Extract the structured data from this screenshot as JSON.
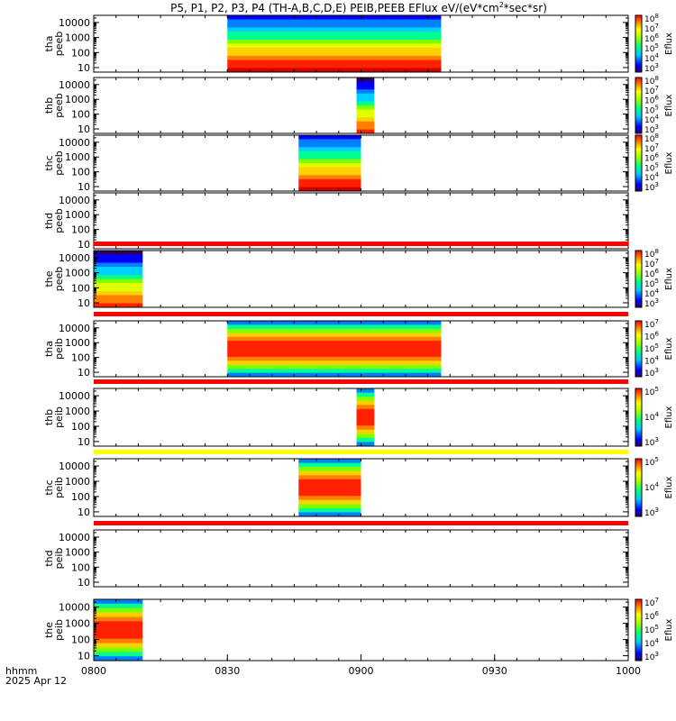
{
  "title": "P5, P1, P2, P3, P4 (TH-A,B,C,D,E) PEIB,PEEB EFlux eV/(eV*cm",
  "title_sup": "2",
  "title_tail": "*sec*sr)",
  "time_label": "hhmm",
  "date_label": "2025 Apr 12",
  "colors": {
    "frame": "#000000",
    "bad_red": "#ff0000",
    "bad_yellow": "#ffff00"
  },
  "chart_data": {
    "type": "heatmap",
    "x_unit": "hhmm",
    "xlim": [
      "0800",
      "1000"
    ],
    "x_ticks": [
      "0800",
      "0830",
      "0900",
      "0930",
      "1000"
    ],
    "y_scale": "log",
    "ylim": [
      5,
      30000
    ],
    "y_ticks": [
      "10",
      "100",
      "1000",
      "10000"
    ],
    "colorbar_label": "Eflux",
    "panels": [
      {
        "label": [
          "tha",
          "peeb"
        ],
        "has_data": true,
        "x_range": [
          "0830",
          "0918"
        ],
        "cbar_ticks": [
          "10",
          "10",
          "10",
          "10",
          "10",
          "10"
        ],
        "cbar_exps": [
          "3",
          "4",
          "5",
          "6",
          "7",
          "8"
        ],
        "status_bar": null
      },
      {
        "label": [
          "thb",
          "peeb"
        ],
        "has_data": true,
        "x_range": [
          "0859",
          "0903"
        ],
        "cbar_ticks": [
          "10",
          "10",
          "10",
          "10",
          "10",
          "10"
        ],
        "cbar_exps": [
          "3",
          "4",
          "5",
          "6",
          "7",
          "8"
        ],
        "status_bar": null
      },
      {
        "label": [
          "thc",
          "peeb"
        ],
        "has_data": true,
        "x_range": [
          "0846",
          "0900"
        ],
        "cbar_ticks": [
          "10",
          "10",
          "10",
          "10",
          "10",
          "10"
        ],
        "cbar_exps": [
          "3",
          "4",
          "5",
          "6",
          "7",
          "8"
        ],
        "status_bar": null
      },
      {
        "label": [
          "thd",
          "peeb"
        ],
        "has_data": false,
        "x_range": null,
        "cbar_ticks": [],
        "cbar_exps": [],
        "status_bar": null
      },
      {
        "label": [
          "the",
          "peeb"
        ],
        "has_data": true,
        "x_range": [
          "0800",
          "0811"
        ],
        "cbar_ticks": [
          "10",
          "10",
          "10",
          "10",
          "10",
          "10"
        ],
        "cbar_exps": [
          "3",
          "4",
          "5",
          "6",
          "7",
          "8"
        ],
        "status_bar": "red"
      },
      {
        "label": [
          "tha",
          "peib"
        ],
        "has_data": true,
        "x_range": [
          "0830",
          "0918"
        ],
        "cbar_ticks": [
          "10",
          "10",
          "10",
          "10",
          "10"
        ],
        "cbar_exps": [
          "3",
          "4",
          "5",
          "6",
          "7"
        ],
        "status_bar": "red"
      },
      {
        "label": [
          "thb",
          "peib"
        ],
        "has_data": true,
        "x_range": [
          "0859",
          "0903"
        ],
        "cbar_ticks": [
          "10",
          "10",
          "10"
        ],
        "cbar_exps": [
          "3",
          "4",
          "5"
        ],
        "status_bar": "red"
      },
      {
        "label": [
          "thc",
          "peib"
        ],
        "has_data": true,
        "x_range": [
          "0846",
          "0900"
        ],
        "cbar_ticks": [
          "10",
          "10",
          "10"
        ],
        "cbar_exps": [
          "3",
          "4",
          "5"
        ],
        "status_bar": "yellow"
      },
      {
        "label": [
          "thd",
          "peib"
        ],
        "has_data": false,
        "x_range": null,
        "cbar_ticks": [],
        "cbar_exps": [],
        "status_bar": "red"
      },
      {
        "label": [
          "the",
          "peib"
        ],
        "has_data": true,
        "x_range": [
          "0800",
          "0811"
        ],
        "cbar_ticks": [
          "10",
          "10",
          "10",
          "10",
          "10"
        ],
        "cbar_exps": [
          "3",
          "4",
          "5",
          "6",
          "7"
        ],
        "status_bar": null
      }
    ]
  }
}
